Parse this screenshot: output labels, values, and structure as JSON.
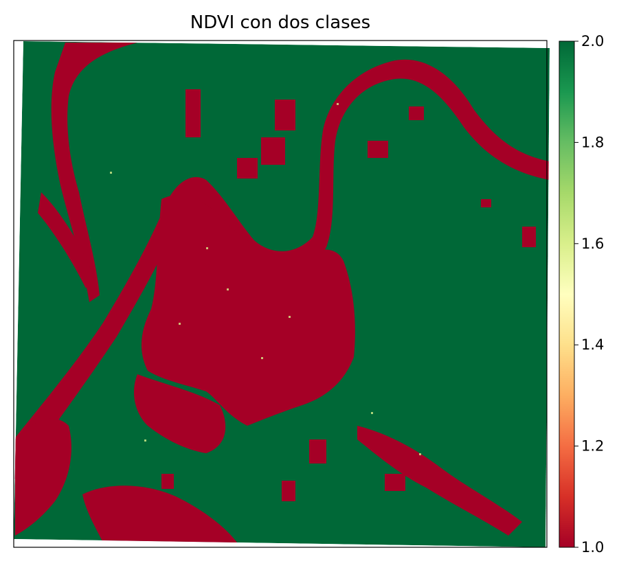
{
  "chart_data": {
    "type": "heatmap",
    "title": "NDVI con dos clases",
    "xlabel": "",
    "ylabel": "",
    "colormap": "RdYlGn",
    "classes": [
      1,
      2
    ],
    "class_colors": {
      "1": "#a50026",
      "2": "#006837"
    },
    "colorbar": {
      "min": 1.0,
      "max": 2.0,
      "ticks": [
        "1.0",
        "1.2",
        "1.4",
        "1.6",
        "1.8",
        "2.0"
      ],
      "tick_values": [
        1.0,
        1.2,
        1.4,
        1.6,
        1.8,
        2.0
      ],
      "stops": [
        "#a50026",
        "#d73027",
        "#f46d43",
        "#fdae61",
        "#fee08b",
        "#ffffbf",
        "#d9ef8b",
        "#a6d96a",
        "#66bd63",
        "#1a9850",
        "#006837"
      ]
    },
    "x_ticks_visible": false,
    "y_ticks_visible": false
  }
}
